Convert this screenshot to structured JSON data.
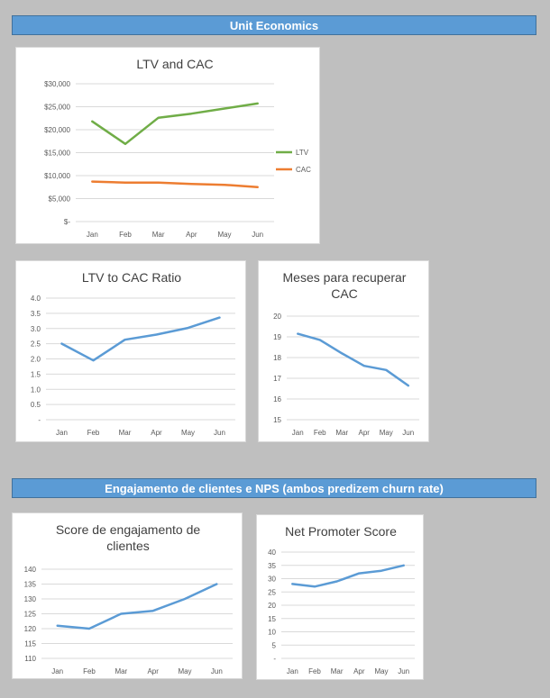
{
  "sections": {
    "unit_economics": "Unit Economics",
    "engagement": "Engajamento de clientes e NPS (ambos predizem churn rate)"
  },
  "colors": {
    "blue": "#5b9bd5",
    "green": "#70ad47",
    "orange": "#ed7d31"
  },
  "chart_data": [
    {
      "id": "ltv-cac",
      "type": "line",
      "title": [
        "LTV and CAC"
      ],
      "categories": [
        "Jan",
        "Feb",
        "Mar",
        "Apr",
        "May",
        "Jun"
      ],
      "ylim": [
        0,
        30000
      ],
      "yticks": [
        0,
        5000,
        10000,
        15000,
        20000,
        25000,
        30000
      ],
      "ytick_labels": [
        "$-",
        "$5,000",
        "$10,000",
        "$15,000",
        "$20,000",
        "$25,000",
        "$30,000"
      ],
      "series": [
        {
          "name": "LTV",
          "color": "#70ad47",
          "values": [
            21800,
            16900,
            22600,
            23500,
            24600,
            25700
          ]
        },
        {
          "name": "CAC",
          "color": "#ed7d31",
          "values": [
            8700,
            8500,
            8500,
            8200,
            8000,
            7500
          ]
        }
      ],
      "legend": "right"
    },
    {
      "id": "ltv-cac-ratio",
      "type": "line",
      "title": [
        "LTV to CAC Ratio"
      ],
      "categories": [
        "Jan",
        "Feb",
        "Mar",
        "Apr",
        "May",
        "Jun"
      ],
      "ylim": [
        0,
        4.0
      ],
      "yticks": [
        0,
        0.5,
        1.0,
        1.5,
        2.0,
        2.5,
        3.0,
        3.5,
        4.0
      ],
      "ytick_labels": [
        "-",
        "0.5",
        "1.0",
        "1.5",
        "2.0",
        "2.5",
        "3.0",
        "3.5",
        "4.0"
      ],
      "series": [
        {
          "name": "LTV to CAC Ratio",
          "color": "#5b9bd5",
          "values": [
            2.5,
            1.95,
            2.63,
            2.8,
            3.02,
            3.36
          ]
        }
      ]
    },
    {
      "id": "payback-months",
      "type": "line",
      "title": [
        "Meses para recuperar",
        "CAC"
      ],
      "categories": [
        "Jan",
        "Feb",
        "Mar",
        "Apr",
        "May",
        "Jun"
      ],
      "ylim": [
        15,
        20
      ],
      "yticks": [
        15,
        16,
        17,
        18,
        19,
        20
      ],
      "ytick_labels": [
        "15",
        "16",
        "17",
        "18",
        "19",
        "20"
      ],
      "series": [
        {
          "name": "Meses para recuperar CAC",
          "color": "#5b9bd5",
          "values": [
            19.15,
            18.85,
            18.2,
            17.6,
            17.4,
            16.65
          ]
        }
      ]
    },
    {
      "id": "engagement-score",
      "type": "line",
      "title": [
        "Score de engajamento de",
        "clientes"
      ],
      "categories": [
        "Jan",
        "Feb",
        "Mar",
        "Apr",
        "May",
        "Jun"
      ],
      "ylim": [
        110,
        140
      ],
      "yticks": [
        110,
        115,
        120,
        125,
        130,
        135,
        140
      ],
      "ytick_labels": [
        "110",
        "115",
        "120",
        "125",
        "130",
        "135",
        "140"
      ],
      "series": [
        {
          "name": "Score de engajamento de clientes",
          "color": "#5b9bd5",
          "values": [
            121,
            120,
            125,
            126,
            130,
            135
          ]
        }
      ]
    },
    {
      "id": "nps",
      "type": "line",
      "title": [
        "Net Promoter Score"
      ],
      "categories": [
        "Jan",
        "Feb",
        "Mar",
        "Apr",
        "May",
        "Jun"
      ],
      "ylim": [
        0,
        40
      ],
      "yticks": [
        0,
        5,
        10,
        15,
        20,
        25,
        30,
        35,
        40
      ],
      "ytick_labels": [
        "-",
        "5",
        "10",
        "15",
        "20",
        "25",
        "30",
        "35",
        "40"
      ],
      "series": [
        {
          "name": "Net Promoter Score",
          "color": "#5b9bd5",
          "values": [
            28,
            27,
            29,
            32,
            33,
            35
          ]
        }
      ]
    }
  ]
}
